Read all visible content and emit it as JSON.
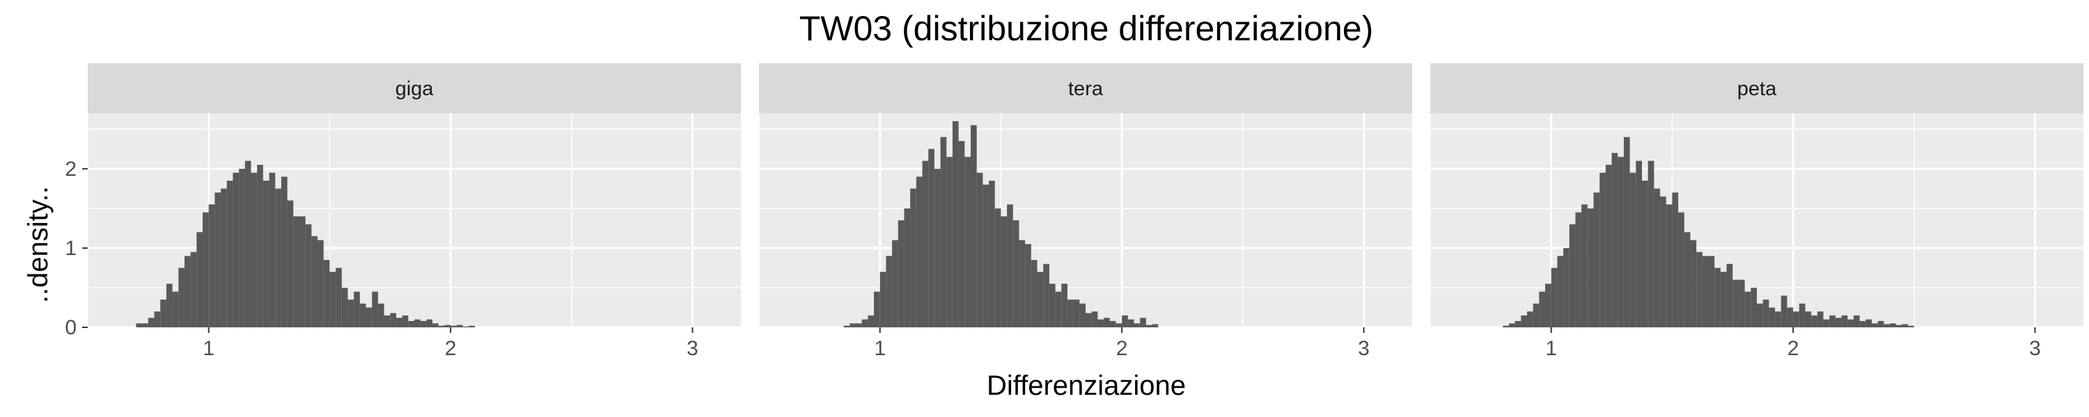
{
  "chart_data": {
    "type": "bar",
    "subtype": "histogram",
    "title": "TW03 (distribuzione differenziazione)",
    "xlabel": "Differenziazione",
    "ylabel": "..density..",
    "xlim": [
      0.5,
      3.2
    ],
    "ylim": [
      0,
      2.7
    ],
    "x_ticks": [
      1,
      2,
      3
    ],
    "y_ticks": [
      0,
      1,
      2
    ],
    "bin_width": 0.025,
    "bar_color": "#595959",
    "panel_background": "#ebebeb",
    "strip_background": "#d9d9d9",
    "grid": true,
    "facets": [
      {
        "label": "giga",
        "x_start": 0.7,
        "values": [
          0.05,
          0.05,
          0.12,
          0.2,
          0.35,
          0.55,
          0.45,
          0.75,
          0.9,
          0.95,
          1.2,
          1.45,
          1.55,
          1.7,
          1.75,
          1.85,
          1.95,
          2.0,
          2.1,
          1.95,
          2.05,
          1.85,
          1.95,
          1.75,
          1.9,
          1.6,
          1.4,
          1.4,
          1.3,
          1.15,
          1.1,
          0.85,
          0.7,
          0.75,
          0.5,
          0.35,
          0.45,
          0.3,
          0.25,
          0.45,
          0.3,
          0.15,
          0.18,
          0.12,
          0.15,
          0.08,
          0.1,
          0.08,
          0.1,
          0.05,
          0.02,
          0.03,
          0.02,
          0.03,
          0.01,
          0.02
        ]
      },
      {
        "label": "tera",
        "x_start": 0.85,
        "values": [
          0.02,
          0.05,
          0.05,
          0.1,
          0.15,
          0.45,
          0.7,
          0.9,
          1.1,
          1.35,
          1.5,
          1.75,
          1.9,
          2.1,
          2.25,
          2.0,
          2.4,
          2.15,
          2.6,
          2.35,
          2.15,
          2.55,
          1.95,
          1.8,
          1.85,
          1.5,
          1.4,
          1.55,
          1.35,
          1.1,
          1.05,
          0.85,
          0.7,
          0.8,
          0.55,
          0.45,
          0.55,
          0.35,
          0.35,
          0.3,
          0.18,
          0.2,
          0.1,
          0.12,
          0.08,
          0.05,
          0.15,
          0.1,
          0.05,
          0.12,
          0.03,
          0.04
        ]
      },
      {
        "label": "peta",
        "x_start": 0.8,
        "values": [
          0.02,
          0.05,
          0.08,
          0.15,
          0.2,
          0.3,
          0.45,
          0.55,
          0.75,
          0.9,
          1.0,
          1.3,
          1.45,
          1.55,
          1.5,
          1.7,
          1.95,
          2.05,
          2.2,
          2.15,
          2.4,
          1.95,
          2.1,
          1.85,
          2.1,
          1.75,
          1.65,
          1.55,
          1.7,
          1.45,
          1.2,
          1.1,
          0.95,
          0.9,
          0.9,
          0.75,
          0.7,
          0.8,
          0.6,
          0.6,
          0.45,
          0.5,
          0.3,
          0.35,
          0.25,
          0.2,
          0.4,
          0.25,
          0.2,
          0.3,
          0.2,
          0.15,
          0.2,
          0.1,
          0.15,
          0.12,
          0.15,
          0.1,
          0.15,
          0.08,
          0.1,
          0.05,
          0.08,
          0.04,
          0.05,
          0.03,
          0.04,
          0.02
        ]
      }
    ]
  }
}
